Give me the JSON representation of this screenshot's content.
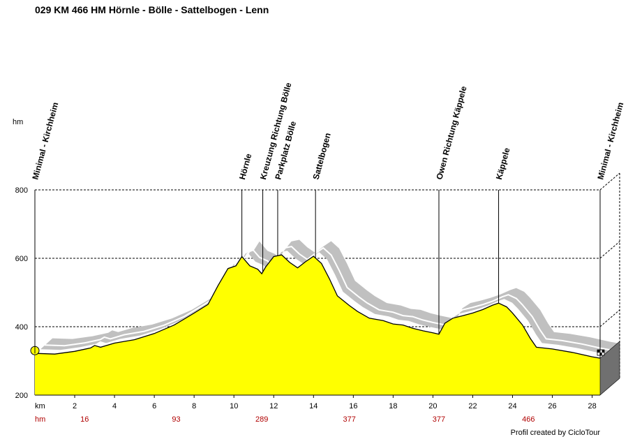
{
  "title": "029 KM 466 HM Hörnle - Bölle - Sattelbogen - Lenn",
  "y_unit_label": "hm",
  "x_unit_label": "km",
  "hm_row_label": "hm",
  "credit": "Profil created by CicloTour",
  "colors": {
    "fill": "#ffff00",
    "shadow": "#c0c0c0",
    "hm_text": "#b00000"
  },
  "chart_data": {
    "type": "area",
    "title": "029 KM 466 HM Hörnle - Bölle - Sattelbogen - Lenn",
    "ylabel": "hm",
    "xlabel": "km",
    "xlim": [
      0,
      28.4
    ],
    "ylim": [
      200,
      800
    ],
    "x_ticks": [
      2,
      4,
      6,
      8,
      10,
      12,
      14,
      16,
      18,
      20,
      22,
      24,
      26,
      28
    ],
    "y_ticks": [
      200,
      400,
      600,
      800
    ],
    "grid": true,
    "profile": [
      [
        0,
        322
      ],
      [
        1,
        320
      ],
      [
        2,
        328
      ],
      [
        2.8,
        338
      ],
      [
        3,
        345
      ],
      [
        3.3,
        340
      ],
      [
        4,
        352
      ],
      [
        5,
        362
      ],
      [
        6,
        380
      ],
      [
        7,
        405
      ],
      [
        8,
        440
      ],
      [
        8.7,
        465
      ],
      [
        9.2,
        520
      ],
      [
        9.7,
        570
      ],
      [
        10.1,
        578
      ],
      [
        10.4,
        605
      ],
      [
        10.8,
        578
      ],
      [
        11.2,
        568
      ],
      [
        11.4,
        555
      ],
      [
        11.6,
        575
      ],
      [
        12.0,
        605
      ],
      [
        12.4,
        610
      ],
      [
        12.8,
        588
      ],
      [
        13.2,
        572
      ],
      [
        13.6,
        590
      ],
      [
        14.0,
        606
      ],
      [
        14.4,
        585
      ],
      [
        14.8,
        540
      ],
      [
        15.2,
        490
      ],
      [
        15.8,
        462
      ],
      [
        16.2,
        445
      ],
      [
        16.8,
        425
      ],
      [
        17.5,
        418
      ],
      [
        18.0,
        408
      ],
      [
        18.5,
        405
      ],
      [
        19.0,
        395
      ],
      [
        19.5,
        388
      ],
      [
        20.0,
        382
      ],
      [
        20.3,
        378
      ],
      [
        20.6,
        410
      ],
      [
        21.0,
        425
      ],
      [
        21.5,
        432
      ],
      [
        22.0,
        440
      ],
      [
        22.5,
        450
      ],
      [
        23.0,
        463
      ],
      [
        23.3,
        469
      ],
      [
        23.7,
        458
      ],
      [
        24.0,
        440
      ],
      [
        24.5,
        405
      ],
      [
        24.9,
        365
      ],
      [
        25.2,
        340
      ],
      [
        26.0,
        335
      ],
      [
        27.0,
        325
      ],
      [
        28.0,
        312
      ],
      [
        28.4,
        308
      ]
    ],
    "waypoints": [
      {
        "km": 0,
        "label": "Minimal - Kirchheim"
      },
      {
        "km": 10.4,
        "label": "Hörnle"
      },
      {
        "km": 11.45,
        "label": "Kreuzung Richtung Bölle"
      },
      {
        "km": 12.2,
        "label": "Parkplatz Bölle"
      },
      {
        "km": 14.1,
        "label": "Sattelbogen"
      },
      {
        "km": 20.3,
        "label": "Owen Richtung Käppele"
      },
      {
        "km": 23.3,
        "label": "Käppele"
      },
      {
        "km": 28.4,
        "label": "Minimal - Kirchheim"
      }
    ],
    "cumulative_hm": [
      {
        "km": 2.5,
        "label": "16"
      },
      {
        "km": 7.1,
        "label": "93"
      },
      {
        "km": 11.4,
        "label": "289"
      },
      {
        "km": 15.8,
        "label": "377"
      },
      {
        "km": 20.3,
        "label": "377"
      },
      {
        "km": 24.8,
        "label": "466"
      }
    ]
  }
}
